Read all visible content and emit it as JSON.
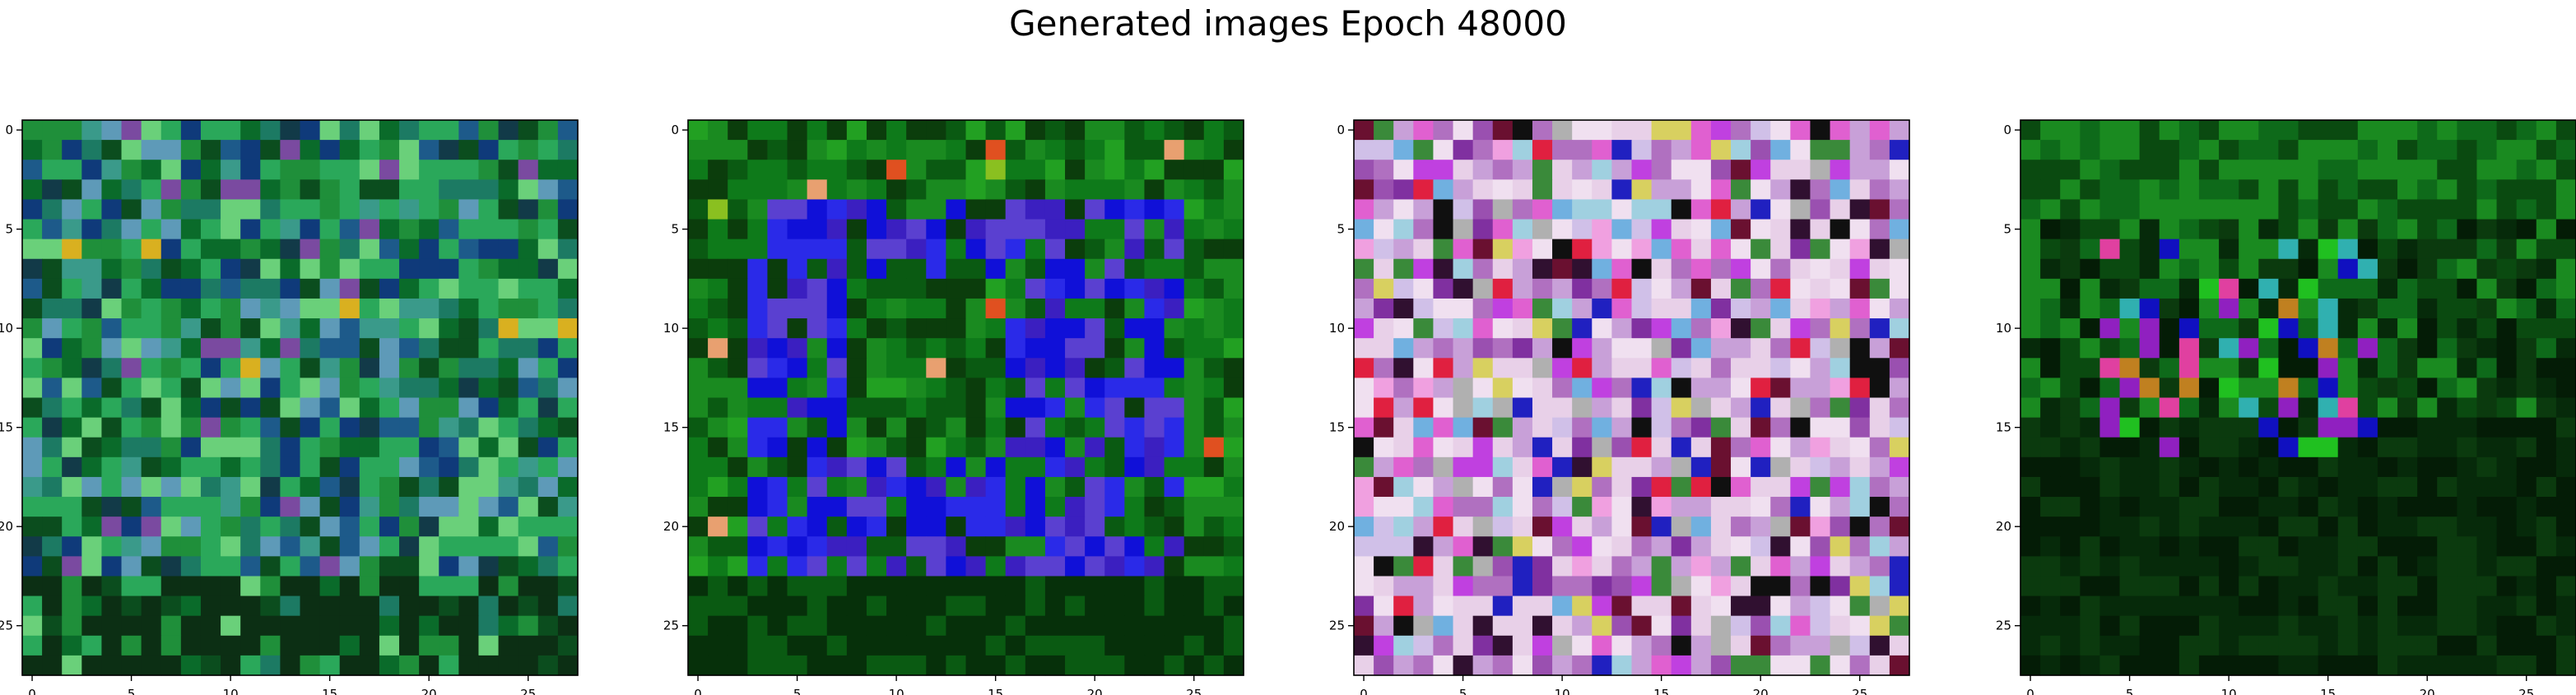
{
  "title": "Generated images Epoch 48000",
  "chart_data": [
    {
      "type": "heatmap",
      "grid_size": [
        28,
        28
      ],
      "xticks": [
        "0",
        "5",
        "10",
        "15",
        "20",
        "25"
      ],
      "yticks": [
        "0",
        "5",
        "10",
        "15",
        "20",
        "25"
      ],
      "xlim": [
        -0.5,
        27.5
      ],
      "ylim": [
        27.5,
        -0.5
      ],
      "grid": false,
      "palette": [
        "#0a6b2a",
        "#1f8f3a",
        "#0b4d1e",
        "#2aa85a",
        "#1c7a63",
        "#3a9a8a",
        "#1d5a8a",
        "#0f3a7a",
        "#5e9ab8",
        "#6ad07a",
        "#0c2f14",
        "#7a4aa0",
        "#d9b020",
        "#123a48"
      ],
      "description_note": ""
    },
    {
      "type": "heatmap",
      "grid_size": [
        28,
        28
      ],
      "xticks": [
        "0",
        "5",
        "10",
        "15",
        "20",
        "25"
      ],
      "yticks": [
        "0",
        "5",
        "10",
        "15",
        "20",
        "25"
      ],
      "xlim": [
        -0.5,
        27.5
      ],
      "ylim": [
        27.5,
        -0.5
      ],
      "grid": false,
      "palette": [
        "#0a5a12",
        "#0e7a1a",
        "#1a8a20",
        "#0b3d0c",
        "#1010d8",
        "#2a2ae8",
        "#3b1fc0",
        "#5a40d0",
        "#22a022",
        "#8ac020",
        "#e8a070",
        "#e05020",
        "#06300a",
        "#3a6a10"
      ]
    },
    {
      "type": "heatmap",
      "grid_size": [
        28,
        28
      ],
      "xticks": [
        "0",
        "5",
        "10",
        "15",
        "20",
        "25"
      ],
      "yticks": [
        "0",
        "5",
        "10",
        "15",
        "20",
        "25"
      ],
      "xlim": [
        -0.5,
        27.5
      ],
      "ylim": [
        27.5,
        -0.5
      ],
      "grid": false,
      "palette": [
        "#e8d0e8",
        "#c8a0d8",
        "#b070c0",
        "#f0e0f0",
        "#d0c0e8",
        "#9a50b0",
        "#e060d0",
        "#a0d0e0",
        "#6a1030",
        "#301030",
        "#2020c0",
        "#d8d060",
        "#e02040",
        "#3a8a3a",
        "#c040e0",
        "#101010",
        "#b0b0b0",
        "#8030a0",
        "#f0a0e0",
        "#70b0e0"
      ]
    },
    {
      "type": "heatmap",
      "grid_size": [
        28,
        28
      ],
      "xticks": [
        "0",
        "5",
        "10",
        "15",
        "20",
        "25"
      ],
      "yticks": [
        "0",
        "5",
        "10",
        "15",
        "20",
        "25"
      ],
      "xlim": [
        -0.5,
        27.5
      ],
      "ylim": [
        27.5,
        -0.5
      ],
      "grid": false,
      "palette": [
        "#0a4a10",
        "#0e6a1a",
        "#1a8a20",
        "#062a0a",
        "#041c06",
        "#0b3a0e",
        "#103810",
        "#2a7a20",
        "#e040a0",
        "#20c020",
        "#1010c0",
        "#c08020",
        "#30b0b0",
        "#9020c0"
      ]
    }
  ]
}
